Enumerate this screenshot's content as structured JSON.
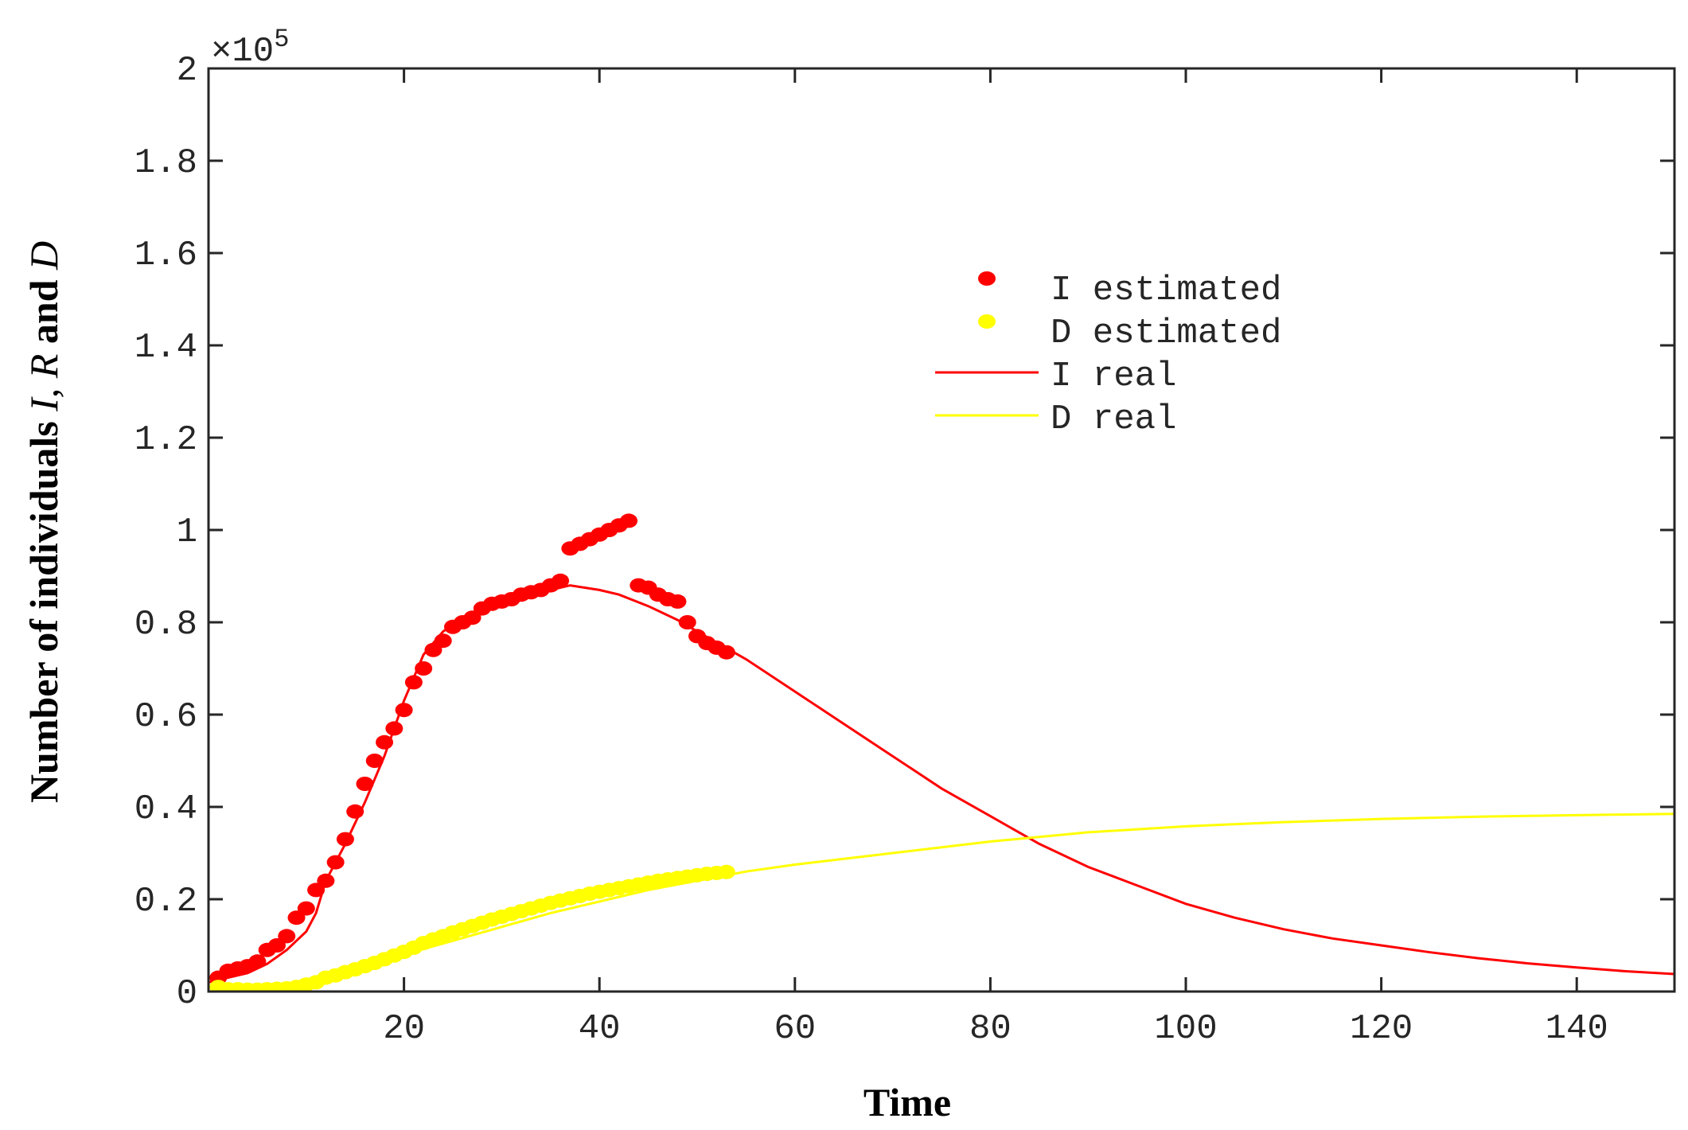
{
  "chart_data": {
    "type": "line",
    "title": "",
    "xlabel": "Time",
    "ylabel": {
      "prefix": "Number of individuals ",
      "var1": "I",
      "sep1": ", ",
      "var2": "R",
      "and": " and ",
      "var3": "D"
    },
    "y_multiplier": "×10",
    "y_multiplier_exp": "5",
    "xlim": [
      0,
      150
    ],
    "ylim": [
      0,
      2
    ],
    "x_ticks": [
      20,
      40,
      60,
      80,
      100,
      120,
      140
    ],
    "y_ticks": [
      0,
      0.2,
      0.4,
      0.6,
      0.8,
      1,
      1.2,
      1.4,
      1.6,
      1.8,
      2
    ],
    "y_tick_labels": [
      "0",
      "0.2",
      "0.4",
      "0.6",
      "0.8",
      "1",
      "1.2",
      "1.4",
      "1.6",
      "1.8",
      "2"
    ],
    "grid": false,
    "legend_position": "upper-center-right",
    "legend": [
      {
        "label": "I estimated",
        "kind": "marker",
        "color": "#ff0000"
      },
      {
        "label": "D estimated",
        "kind": "marker",
        "color": "#ffff00"
      },
      {
        "label": "I real",
        "kind": "line",
        "color": "#ff0000"
      },
      {
        "label": "D real",
        "kind": "line",
        "color": "#ffff00"
      }
    ],
    "series": [
      {
        "name": "I estimated",
        "style": "markers",
        "color": "#ff0000",
        "x": [
          1,
          2,
          3,
          4,
          5,
          6,
          7,
          8,
          9,
          10,
          11,
          12,
          13,
          14,
          15,
          16,
          17,
          18,
          19,
          20,
          21,
          22,
          23,
          24,
          25,
          26,
          27,
          28,
          29,
          30,
          31,
          32,
          33,
          34,
          35,
          36,
          37,
          38,
          39,
          40,
          41,
          42,
          43,
          44,
          45,
          46,
          47,
          48,
          49,
          50,
          51,
          52,
          53
        ],
        "y": [
          0.03,
          0.045,
          0.05,
          0.055,
          0.065,
          0.09,
          0.1,
          0.12,
          0.16,
          0.18,
          0.22,
          0.24,
          0.28,
          0.33,
          0.39,
          0.45,
          0.5,
          0.54,
          0.57,
          0.61,
          0.67,
          0.7,
          0.74,
          0.76,
          0.79,
          0.8,
          0.81,
          0.83,
          0.84,
          0.845,
          0.85,
          0.86,
          0.865,
          0.87,
          0.88,
          0.89,
          0.96,
          0.97,
          0.98,
          0.99,
          1.0,
          1.01,
          1.02,
          0.88,
          0.875,
          0.86,
          0.85,
          0.845,
          0.8,
          0.77,
          0.755,
          0.745,
          0.735
        ]
      },
      {
        "name": "D estimated",
        "style": "markers",
        "color": "#ffff00",
        "x": [
          1,
          2,
          3,
          4,
          5,
          6,
          7,
          8,
          9,
          10,
          11,
          12,
          13,
          14,
          15,
          16,
          17,
          18,
          19,
          20,
          21,
          22,
          23,
          24,
          25,
          26,
          27,
          28,
          29,
          30,
          31,
          32,
          33,
          34,
          35,
          36,
          37,
          38,
          39,
          40,
          41,
          42,
          43,
          44,
          45,
          46,
          47,
          48,
          49,
          50,
          51,
          52,
          53
        ],
        "y": [
          0.01,
          0.005,
          0.005,
          0.004,
          0.004,
          0.005,
          0.006,
          0.007,
          0.01,
          0.015,
          0.02,
          0.03,
          0.035,
          0.042,
          0.048,
          0.055,
          0.062,
          0.07,
          0.078,
          0.086,
          0.095,
          0.105,
          0.113,
          0.12,
          0.128,
          0.135,
          0.142,
          0.149,
          0.156,
          0.162,
          0.168,
          0.174,
          0.18,
          0.186,
          0.192,
          0.197,
          0.202,
          0.207,
          0.212,
          0.216,
          0.22,
          0.224,
          0.228,
          0.232,
          0.236,
          0.24,
          0.243,
          0.246,
          0.249,
          0.252,
          0.255,
          0.257,
          0.259
        ]
      },
      {
        "name": "I real",
        "style": "line",
        "color": "#ff0000",
        "x": [
          0,
          2,
          4,
          6,
          8,
          10,
          11,
          12,
          14,
          16,
          18,
          20,
          22,
          24,
          26,
          28,
          30,
          32,
          34,
          37,
          40,
          42,
          45,
          48,
          50,
          55,
          60,
          65,
          70,
          75,
          80,
          85,
          90,
          95,
          100,
          105,
          110,
          115,
          120,
          125,
          130,
          135,
          140,
          145,
          150
        ],
        "y": [
          0.02,
          0.03,
          0.04,
          0.06,
          0.09,
          0.13,
          0.17,
          0.24,
          0.32,
          0.41,
          0.51,
          0.63,
          0.73,
          0.78,
          0.81,
          0.83,
          0.845,
          0.855,
          0.865,
          0.88,
          0.87,
          0.86,
          0.835,
          0.805,
          0.78,
          0.72,
          0.65,
          0.58,
          0.51,
          0.44,
          0.38,
          0.32,
          0.27,
          0.23,
          0.19,
          0.16,
          0.135,
          0.115,
          0.1,
          0.085,
          0.072,
          0.061,
          0.052,
          0.044,
          0.038
        ]
      },
      {
        "name": "D real",
        "style": "line",
        "color": "#ffff00",
        "x": [
          0,
          5,
          10,
          15,
          20,
          25,
          30,
          35,
          40,
          45,
          50,
          55,
          60,
          70,
          80,
          90,
          100,
          110,
          120,
          130,
          140,
          150
        ],
        "y": [
          0.0,
          0.003,
          0.015,
          0.045,
          0.08,
          0.11,
          0.14,
          0.17,
          0.195,
          0.22,
          0.24,
          0.26,
          0.275,
          0.3,
          0.325,
          0.345,
          0.358,
          0.367,
          0.374,
          0.379,
          0.382,
          0.385
        ]
      }
    ]
  }
}
